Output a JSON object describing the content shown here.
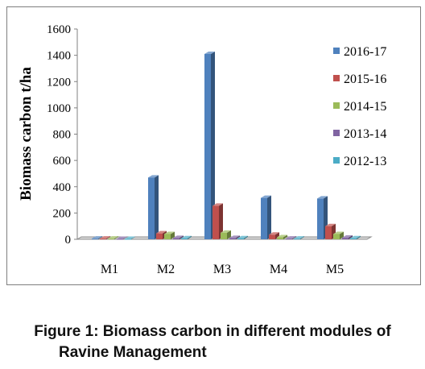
{
  "chart_data": {
    "type": "bar",
    "style": "3d-clustered-column",
    "title": "",
    "xlabel": "",
    "ylabel": "Biomass carbon t/ha",
    "ylim": [
      0,
      1600
    ],
    "yticks": [
      "0",
      "200",
      "400",
      "600",
      "800",
      "1000",
      "1200",
      "1400",
      "1600"
    ],
    "categories": [
      "M1",
      "M2",
      "M3",
      "M4",
      "M5"
    ],
    "series": [
      {
        "name": "2016-17",
        "color": "#4f81bd",
        "values": [
          5,
          470,
          1410,
          315,
          310
        ]
      },
      {
        "name": "2015-16",
        "color": "#c0504d",
        "values": [
          5,
          45,
          255,
          35,
          100
        ]
      },
      {
        "name": "2014-15",
        "color": "#9bbb59",
        "values": [
          5,
          40,
          50,
          15,
          40
        ]
      },
      {
        "name": "2013-14",
        "color": "#8064a2",
        "values": [
          3,
          10,
          10,
          5,
          12
        ]
      },
      {
        "name": "2012-13",
        "color": "#4bacc6",
        "values": [
          3,
          8,
          8,
          5,
          8
        ]
      }
    ],
    "grid": false,
    "legend_position": "right"
  },
  "caption": {
    "line1": "Figure 1: Biomass carbon in different modules of",
    "line2": "Ravine Management"
  }
}
